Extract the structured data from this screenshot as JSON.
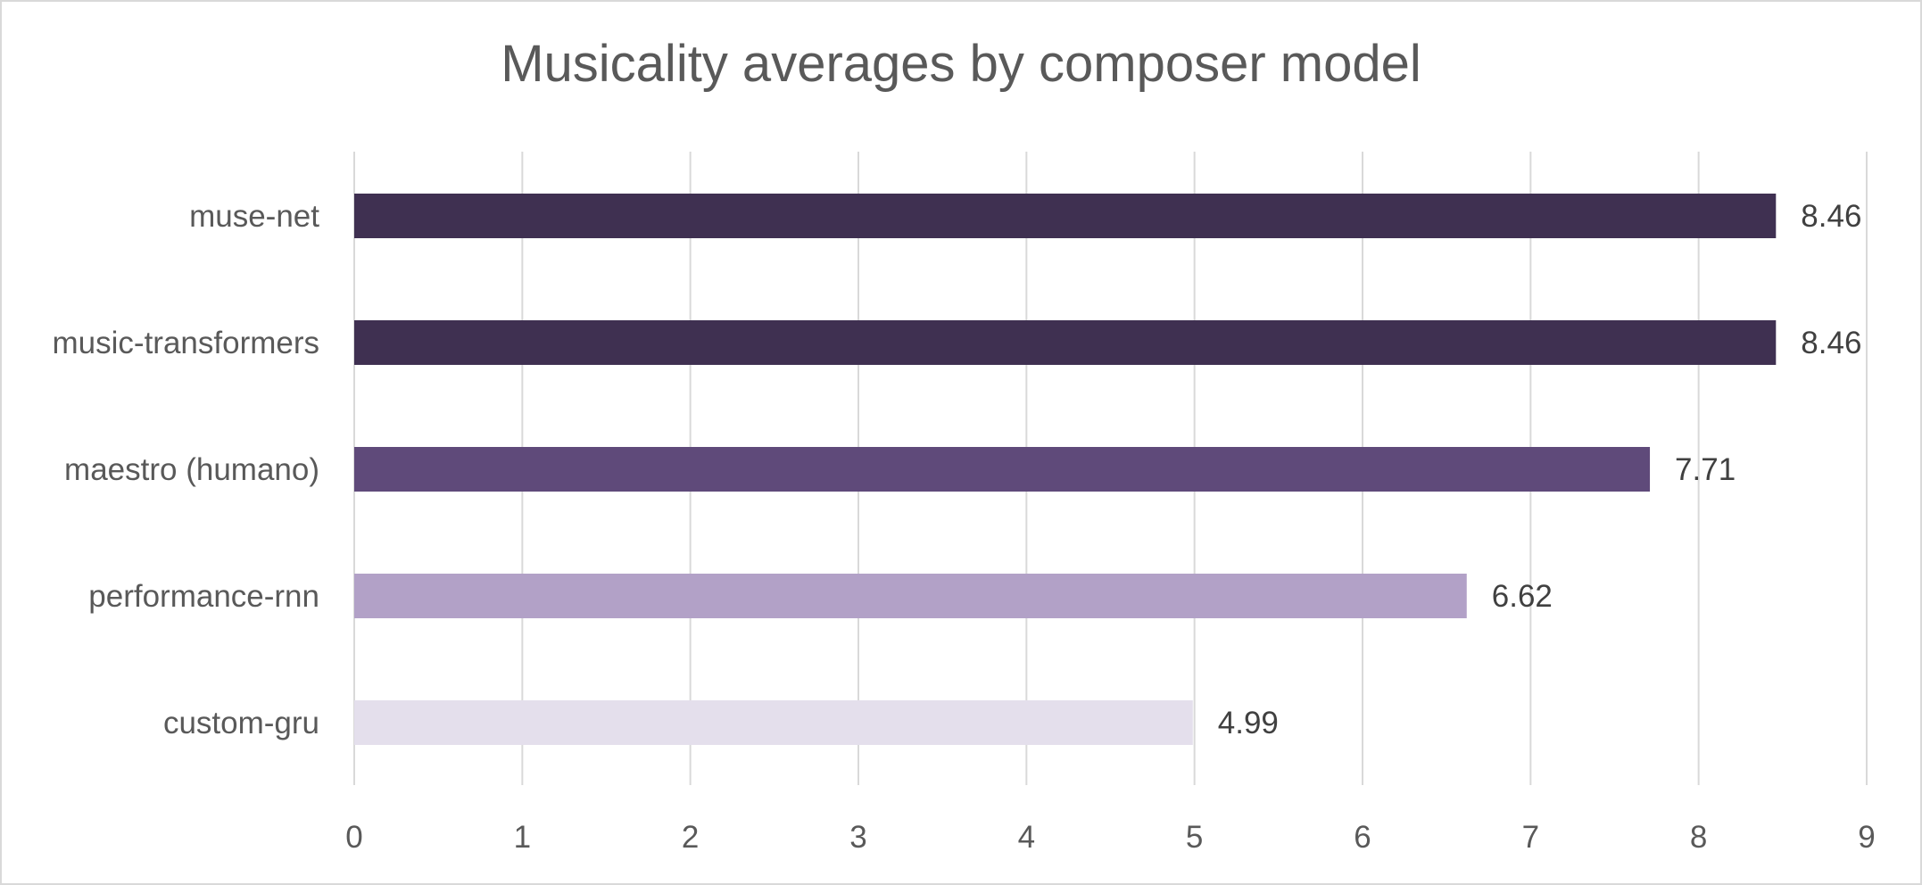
{
  "chart_data": {
    "type": "bar",
    "orientation": "horizontal",
    "title": "Musicality averages by composer model",
    "xlabel": "",
    "ylabel": "",
    "categories": [
      "muse-net",
      "music-transformers",
      "maestro (humano)",
      "performance-rnn",
      "custom-gru"
    ],
    "values": [
      8.46,
      8.46,
      7.71,
      6.62,
      4.99
    ],
    "data_labels": [
      "8.46",
      "8.46",
      "7.71",
      "6.62",
      "4.99"
    ],
    "bar_colors": [
      "#3f3051",
      "#3f3051",
      "#5f4a7a",
      "#b2a1c7",
      "#e4dfec"
    ],
    "xlim": [
      0,
      9
    ],
    "x_ticks": [
      0,
      1,
      2,
      3,
      4,
      5,
      6,
      7,
      8,
      9
    ],
    "x_tick_labels": [
      "0",
      "1",
      "2",
      "3",
      "4",
      "5",
      "6",
      "7",
      "8",
      "9"
    ],
    "grid": "vertical",
    "gridline_color": "#d9d9d9",
    "legend": "none"
  }
}
